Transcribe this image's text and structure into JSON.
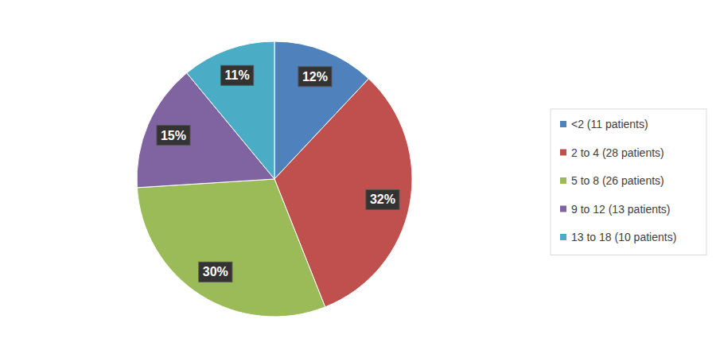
{
  "chart_data": {
    "type": "pie",
    "categories": [
      "<2 (11 patients)",
      "2 to 4 (28 patients)",
      "5 to 8 (26 patients)",
      "9 to 12 (13 patients)",
      "13 to 18 (10 patients)"
    ],
    "values": [
      12,
      32,
      30,
      15,
      11
    ],
    "value_labels": [
      "12%",
      "32%",
      "30%",
      "15%",
      "11%"
    ],
    "colors": [
      "#4f81bd",
      "#c0504d",
      "#9bbb59",
      "#8064a2",
      "#4bacc6"
    ],
    "data_labels": true,
    "legend": "right"
  }
}
